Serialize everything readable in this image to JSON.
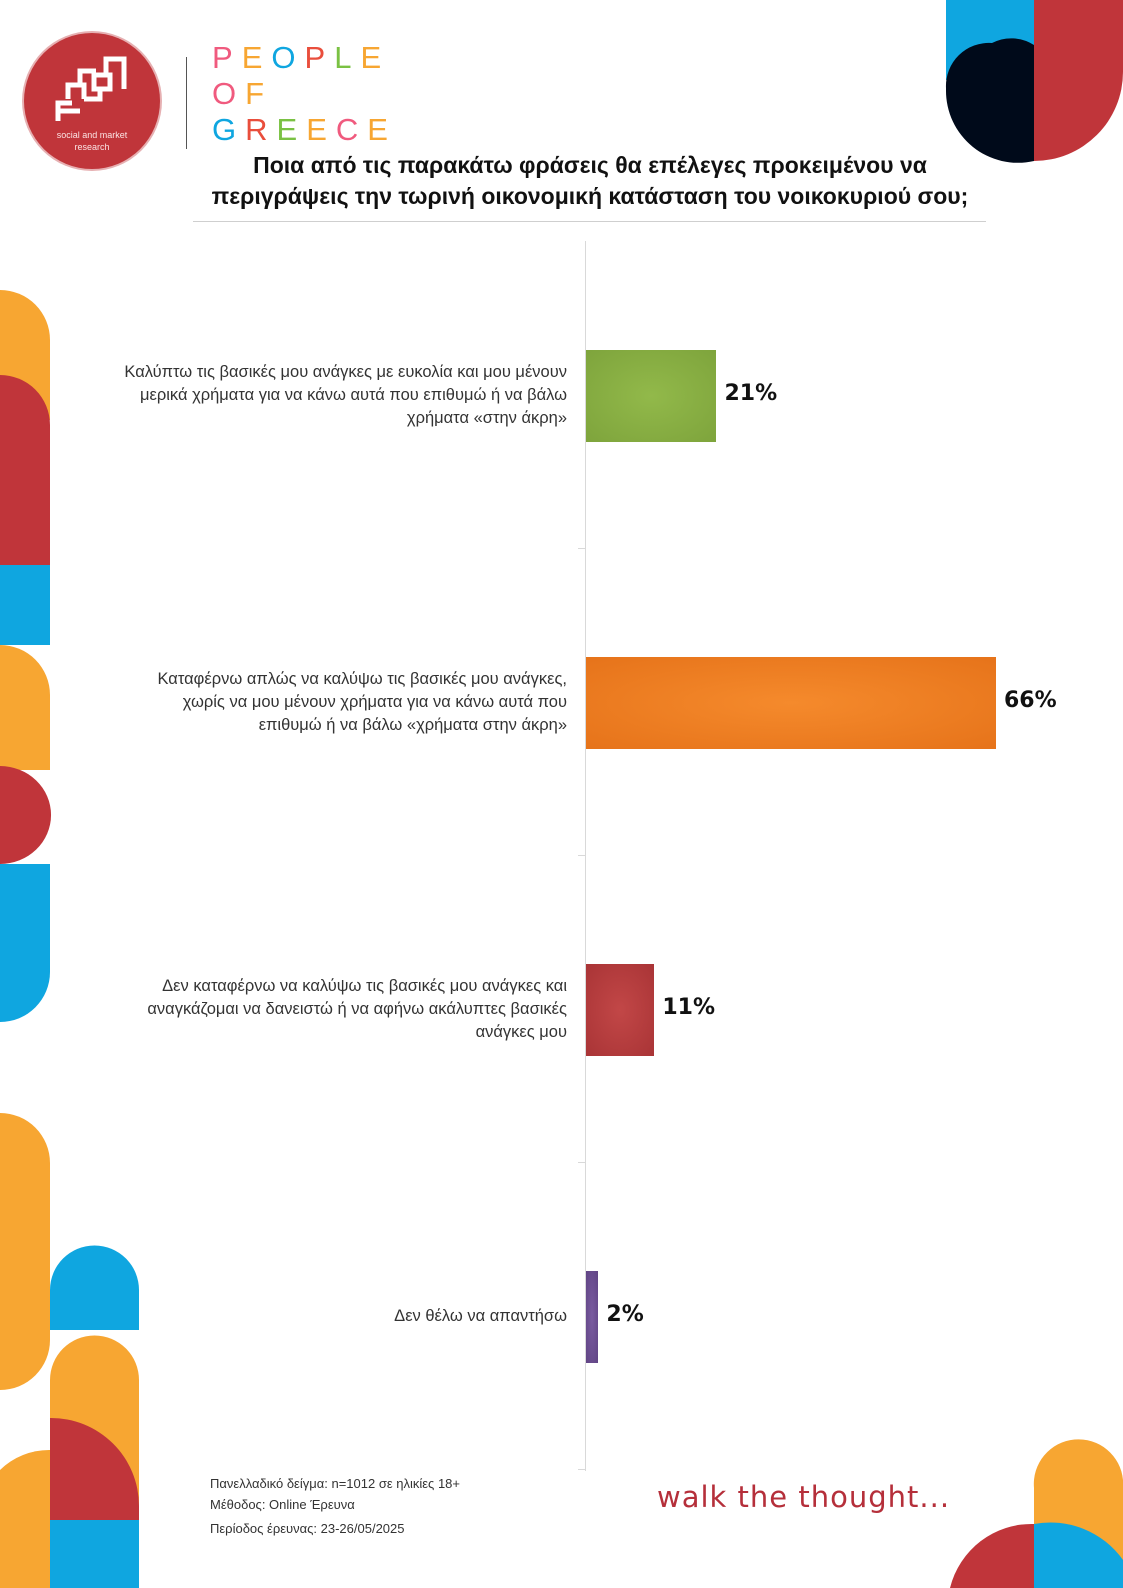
{
  "header": {
    "logo_caption_line1": "social and market",
    "logo_caption_line2": "research",
    "brand_line1": "PEOPLE",
    "brand_line2": "OF",
    "brand_line3": "GREECE"
  },
  "colors": {
    "accent_red": "#c0353a",
    "accent_blue": "#0fa6e0",
    "accent_orange": "#f7a632",
    "dark_navy": "#000a1a",
    "bar_green": "#7ea43c",
    "bar_orange": "#ec7a1c",
    "bar_red": "#b03a3a",
    "bar_purple": "#6a4c8c",
    "brand_letters": [
      "#f05a7e",
      "#f7a632",
      "#0fa6e0",
      "#e94e3c",
      "#7ac143",
      "#f7a632"
    ]
  },
  "chart_data": {
    "type": "bar",
    "orientation": "horizontal",
    "title_line1": "Ποια από τις παρακάτω φράσεις θα επέλεγες προκειμένου να",
    "title_line2": "περιγράψεις την τωρινή οικονομική κατάσταση του νοικοκυριού σου;",
    "categories": [
      "Καλύπτω τις βασικές μου ανάγκες με ευκολία και μου μένουν μερικά χρήματα για να κάνω αυτά που επιθυμώ ή να βάλω χρήματα «στην άκρη»",
      "Καταφέρνω απλώς να καλύψω τις βασικές μου ανάγκες, χωρίς να μου μένουν  χρήματα για να κάνω αυτά που επιθυμώ ή να βάλω «χρήματα στην άκρη»",
      "Δεν καταφέρνω να καλύψω τις βασικές μου ανάγκες και αναγκάζομαι να δανειστώ ή να αφήνω ακάλυπτες βασικές ανάγκες μου",
      "Δεν θέλω να απαντήσω"
    ],
    "values": [
      21,
      66,
      11,
      2
    ],
    "value_labels": [
      "21%",
      "66%",
      "11%",
      "2%"
    ],
    "unit": "%",
    "xlim": [
      0,
      66
    ],
    "grid": false,
    "legend": "none"
  },
  "footer": {
    "sample": "Πανελλαδικό δείγμα: n=1012 σε ηλικίες 18+",
    "method": "Μέθοδος: Online Έρευνα",
    "period": "Περίοδος έρευνας:  23-26/05/2025",
    "tagline": "walk the thought..."
  }
}
